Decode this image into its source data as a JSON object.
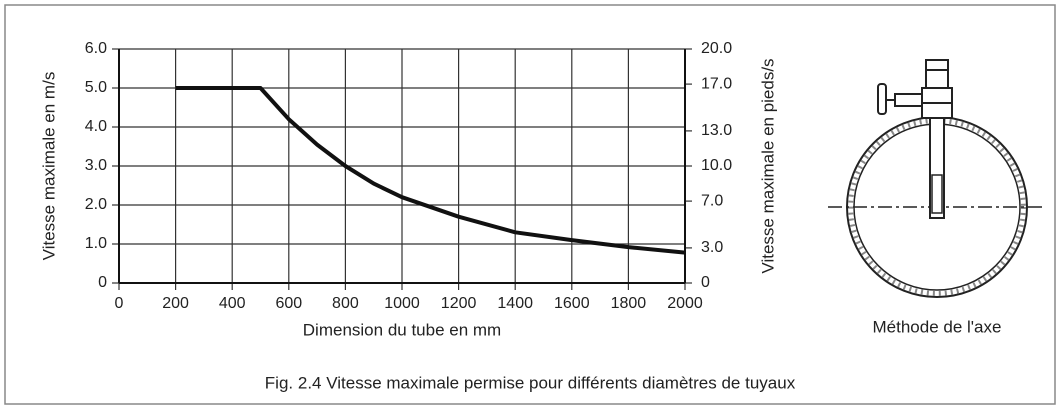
{
  "chart_data": {
    "type": "line",
    "color": "#111111",
    "grid": true,
    "xlabel": "Dimension du tube en mm",
    "ylabel": "Vitesse maximale en m/s",
    "y2label": "Vitesse maximale en pieds/s",
    "caption": "Fig. 2.4 Vitesse maximale permise pour différents diamètres de tuyaux",
    "x": [
      200,
      500,
      600,
      700,
      800,
      900,
      1000,
      1200,
      1400,
      1600,
      1800,
      2000
    ],
    "values": [
      5.0,
      5.0,
      4.2,
      3.55,
      3.0,
      2.55,
      2.2,
      1.7,
      1.3,
      1.1,
      0.92,
      0.78
    ],
    "xlim": [
      0,
      2000
    ],
    "xticks": [
      0,
      200,
      400,
      600,
      800,
      1000,
      1200,
      1400,
      1600,
      1800,
      2000
    ],
    "ylim": [
      0,
      6
    ],
    "yticks": [
      0,
      {
        "value": 1,
        "label": "1.0"
      },
      {
        "value": 2,
        "label": "2.0"
      },
      {
        "value": 3,
        "label": "3.0"
      },
      {
        "value": 4,
        "label": "4.0"
      },
      {
        "value": 5,
        "label": "5.0"
      },
      {
        "value": 6,
        "label": "6.0"
      }
    ],
    "y2lim": [
      0,
      20
    ],
    "y2ticks": [
      0,
      {
        "value": 3,
        "label": "3.0"
      },
      {
        "value": 7,
        "label": "7.0"
      },
      {
        "value": 10,
        "label": "10.0"
      },
      {
        "value": 13,
        "label": "13.0"
      },
      {
        "value": 17,
        "label": "17.0"
      },
      {
        "value": 20,
        "label": "20.0"
      }
    ]
  },
  "diagram": {
    "label": "Méthode de l'axe"
  }
}
